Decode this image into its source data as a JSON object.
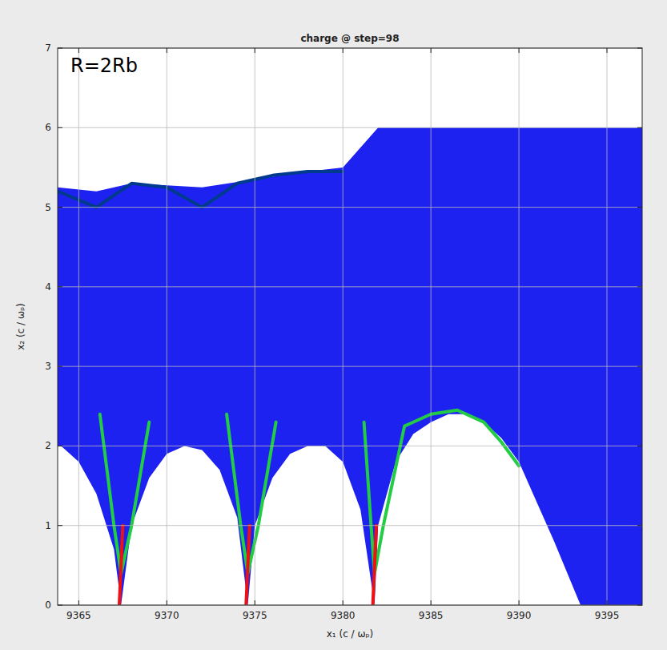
{
  "chart_data": {
    "type": "line",
    "title": "charge @ step=98",
    "annotation": "R=2Rb",
    "x_label": "x₁ (c / ωₚ)",
    "y_label": "x₂ (c / ωₚ)",
    "xlim": [
      9363.8,
      9397
    ],
    "ylim": [
      0,
      7
    ],
    "xticks": [
      9365,
      9370,
      9375,
      9380,
      9385,
      9390,
      9395
    ],
    "yticks": [
      0,
      1,
      2,
      3,
      4,
      5,
      6,
      7
    ],
    "grid": true,
    "series": [
      {
        "type": "area",
        "color": "#1e22f0",
        "x": [
          9363.8,
          9366,
          9368,
          9372,
          9375,
          9378,
          9380,
          9382,
          9397
        ],
        "values": [
          5.25,
          5.2,
          5.3,
          5.25,
          5.35,
          5.45,
          5.5,
          6.0,
          6.0
        ]
      },
      {
        "type": "area",
        "color": "#ffffff",
        "x": [
          9363.8,
          9364,
          9365,
          9366,
          9367,
          9367.4
        ],
        "values": [
          2.0,
          2.0,
          1.8,
          1.4,
          0.7,
          0
        ]
      },
      {
        "type": "area",
        "color": "#ffffff",
        "x": [
          9367.4,
          9368,
          9369,
          9370,
          9371,
          9372,
          9373,
          9374,
          9374.6
        ],
        "values": [
          0,
          1.0,
          1.6,
          1.9,
          2.0,
          1.95,
          1.7,
          1.1,
          0
        ]
      },
      {
        "type": "area",
        "color": "#ffffff",
        "x": [
          9374.6,
          9375,
          9376,
          9377,
          9378,
          9379,
          9380,
          9381,
          9381.8
        ],
        "values": [
          0,
          1.0,
          1.6,
          1.9,
          2.0,
          2.0,
          1.8,
          1.2,
          0
        ]
      },
      {
        "type": "area",
        "color": "#ffffff",
        "x": [
          9381.8,
          9382,
          9383,
          9384,
          9385,
          9386,
          9387,
          9388,
          9389,
          9390,
          9391,
          9392,
          9393.5
        ],
        "values": [
          0,
          1.0,
          1.8,
          2.15,
          2.3,
          2.4,
          2.4,
          2.3,
          2.1,
          1.8,
          1.3,
          0.8,
          0
        ]
      },
      {
        "type": "line",
        "color": "#003a8c",
        "x": [
          9363.8,
          9366,
          9368,
          9370,
          9372,
          9374,
          9376,
          9378,
          9380
        ],
        "values": [
          5.2,
          5.0,
          5.3,
          5.25,
          5.0,
          5.3,
          5.4,
          5.45,
          5.45
        ]
      },
      {
        "type": "line",
        "color": "#22cc44",
        "x": [
          9366.2,
          9367.0,
          9367.4,
          9368.0,
          9369.0
        ],
        "values": [
          2.4,
          1.0,
          0.4,
          1.0,
          2.3
        ]
      },
      {
        "type": "line",
        "color": "#22cc44",
        "x": [
          9373.4,
          9374.2,
          9374.6,
          9375.2,
          9376.2
        ],
        "values": [
          2.4,
          1.0,
          0.4,
          1.0,
          2.3
        ]
      },
      {
        "type": "line",
        "color": "#22cc44",
        "x": [
          9381.2,
          9381.6,
          9381.8,
          9382.3,
          9383.5,
          9385,
          9386.5,
          9388,
          9389,
          9390
        ],
        "values": [
          2.3,
          1.0,
          0.4,
          1.0,
          2.25,
          2.4,
          2.45,
          2.3,
          2.05,
          1.75
        ]
      },
      {
        "type": "line",
        "color": "#ee1111",
        "x": [
          9367.5,
          9367.3
        ],
        "values": [
          1.0,
          0
        ]
      },
      {
        "type": "line",
        "color": "#ee1111",
        "x": [
          9374.7,
          9374.5
        ],
        "values": [
          1.0,
          0
        ]
      },
      {
        "type": "line",
        "color": "#ee1111",
        "x": [
          9381.9,
          9381.7
        ],
        "values": [
          1.0,
          0
        ]
      }
    ]
  }
}
